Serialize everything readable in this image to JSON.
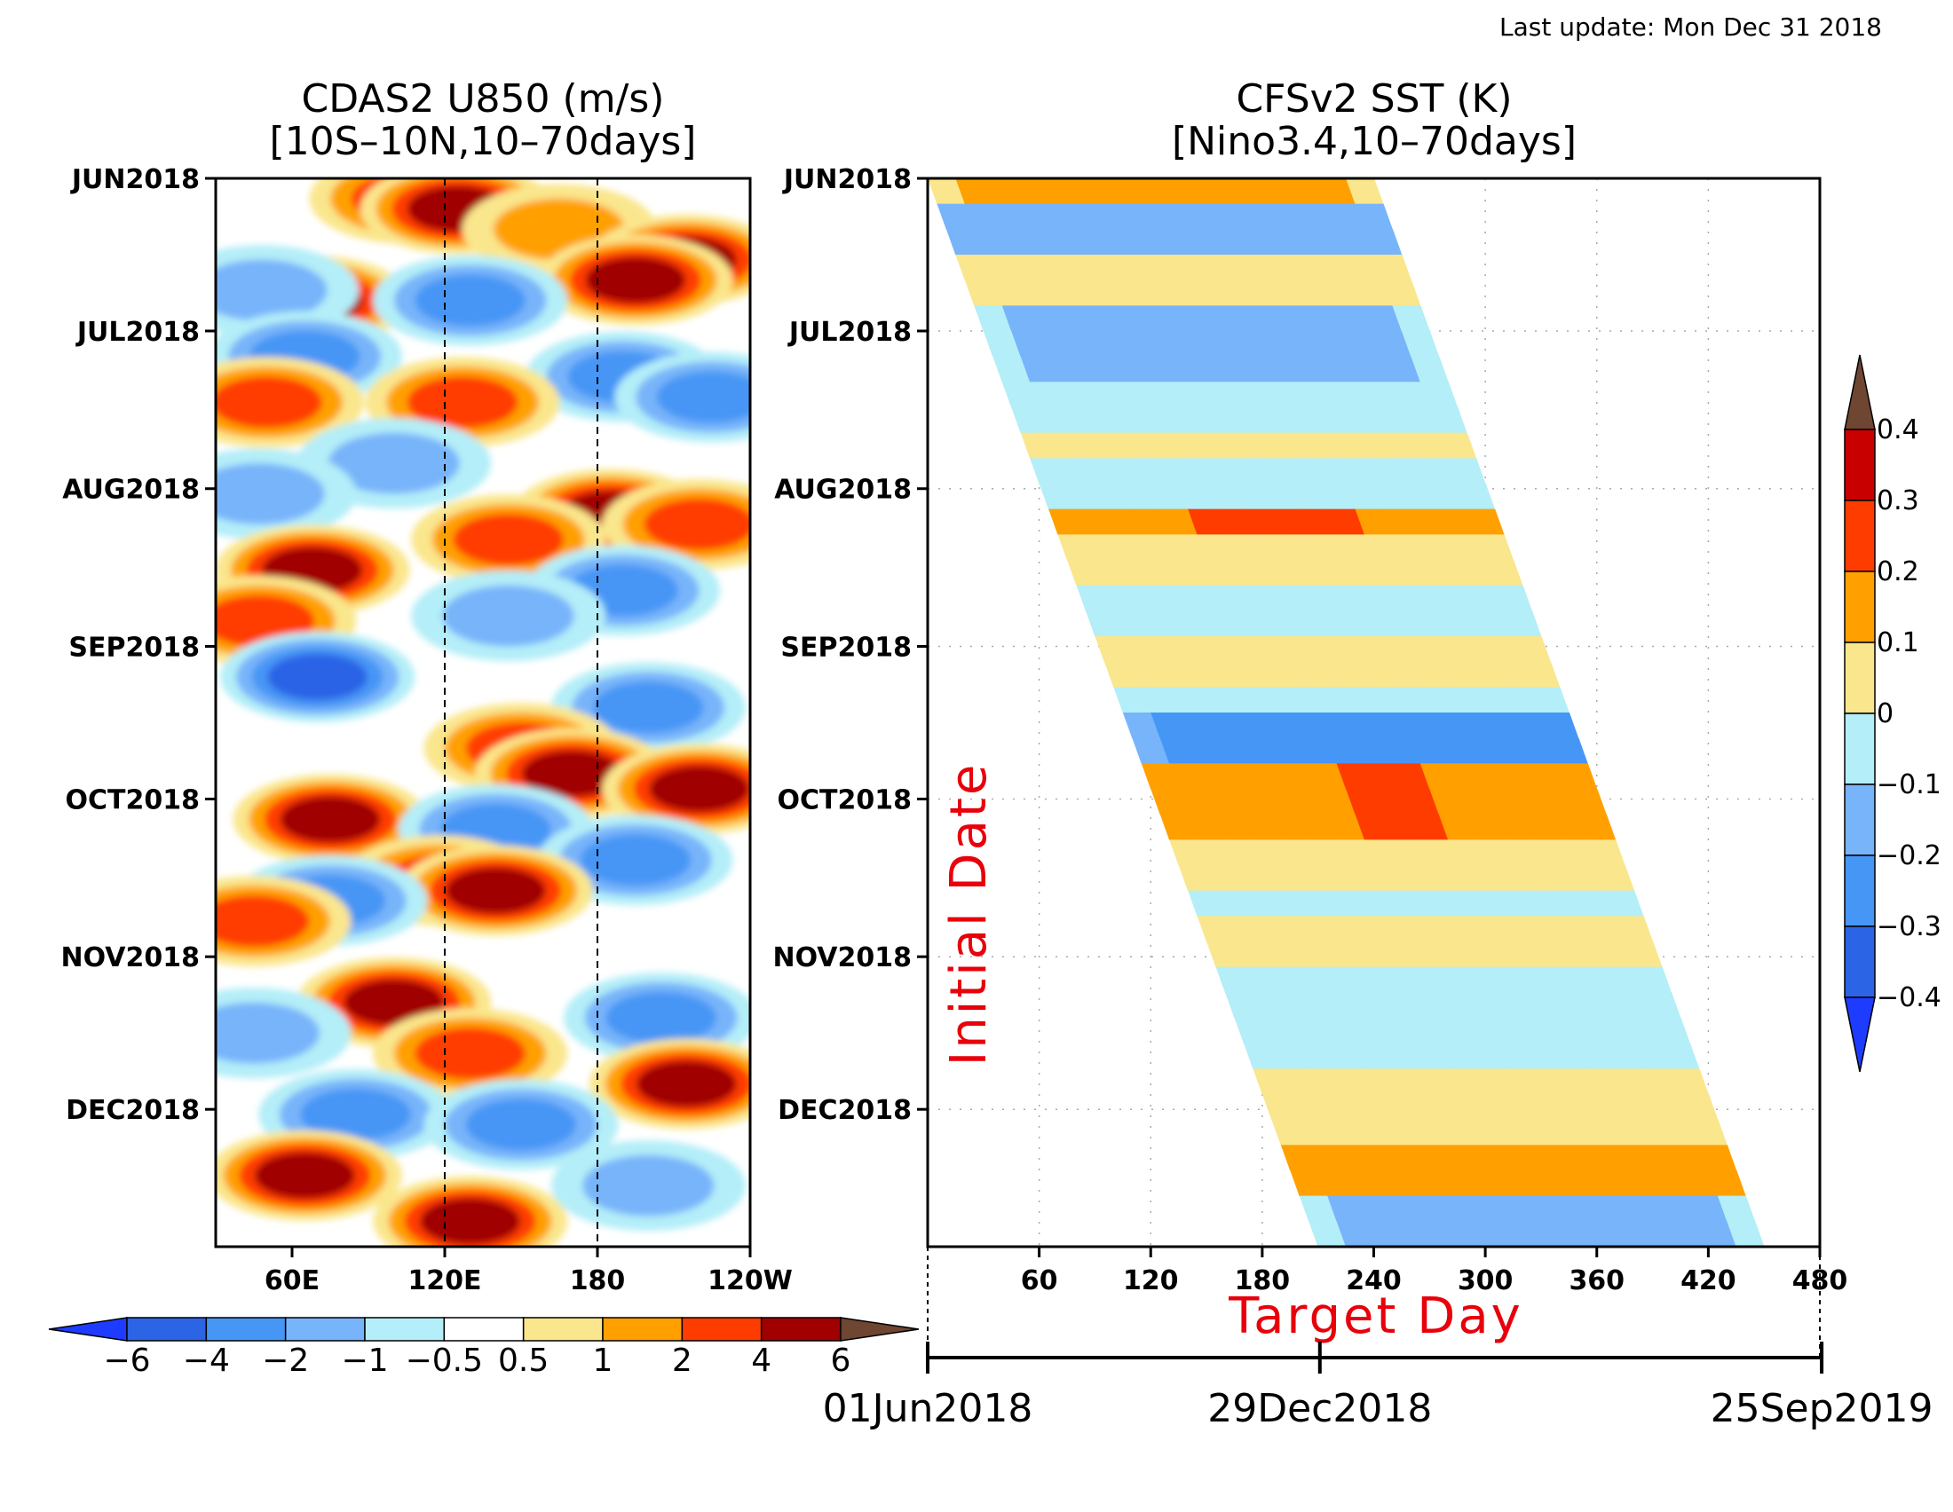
{
  "last_update": "Last update: Mon Dec 31 2018",
  "colors": {
    "u850": [
      "#1e3cff",
      "#2c64e6",
      "#4696f5",
      "#78b4fa",
      "#b4eef8",
      "#ffffff",
      "#fae68c",
      "#ffa000",
      "#ff3c00",
      "#a00000",
      "#6e4632"
    ],
    "sst": [
      "#1e3cff",
      "#2c64e6",
      "#4696f5",
      "#78b4fa",
      "#b4eef8",
      "#fae68c",
      "#ffa000",
      "#ff3c00",
      "#c80000",
      "#6e4632"
    ]
  },
  "chart_data": [
    {
      "type": "heatmap",
      "title_line1": "CDAS2 U850 (m/s)",
      "title_line2": "[10S–10N,10–70days]",
      "xlabel": "",
      "ylabel": "",
      "x_ticks": [
        "60E",
        "120E",
        "180",
        "120W"
      ],
      "x_tick_lon": [
        60,
        120,
        180,
        240
      ],
      "x_range_lon": [
        30,
        240
      ],
      "y_ticks": [
        "JUN2018",
        "JUL2018",
        "AUG2018",
        "SEP2018",
        "OCT2018",
        "NOV2018",
        "DEC2018"
      ],
      "y_tick_day": [
        0,
        30,
        61,
        92,
        122,
        153,
        183
      ],
      "y_range_day": [
        0,
        210
      ],
      "reference_lines_lon": [
        120,
        180
      ],
      "colorbar": {
        "orientation": "horizontal",
        "labels": [
          "−6",
          "−4",
          "−2",
          "−1",
          "−0.5",
          "0.5",
          "1",
          "2",
          "4",
          "6"
        ],
        "levels": [
          -6,
          -4,
          -2,
          -1,
          -0.5,
          0.5,
          1,
          2,
          4,
          6
        ]
      },
      "anomaly_blobs": [
        {
          "day": 4,
          "lon": 105,
          "v": 2
        },
        {
          "day": 6,
          "lon": 125,
          "v": 4
        },
        {
          "day": 10,
          "lon": 165,
          "v": 1
        },
        {
          "day": 16,
          "lon": 215,
          "v": 4
        },
        {
          "day": 20,
          "lon": 195,
          "v": 4
        },
        {
          "day": 24,
          "lon": 68,
          "v": 4
        },
        {
          "day": 24,
          "lon": 130,
          "v": -2
        },
        {
          "day": 22,
          "lon": 48,
          "v": -1
        },
        {
          "day": 35,
          "lon": 65,
          "v": -2
        },
        {
          "day": 39,
          "lon": 190,
          "v": -2
        },
        {
          "day": 43,
          "lon": 225,
          "v": -2
        },
        {
          "day": 44,
          "lon": 50,
          "v": 2
        },
        {
          "day": 44,
          "lon": 127,
          "v": 2
        },
        {
          "day": 56,
          "lon": 100,
          "v": -1
        },
        {
          "day": 62,
          "lon": 47,
          "v": -1
        },
        {
          "day": 66,
          "lon": 185,
          "v": 4
        },
        {
          "day": 68,
          "lon": 220,
          "v": 2
        },
        {
          "day": 71,
          "lon": 145,
          "v": 2
        },
        {
          "day": 77,
          "lon": 68,
          "v": 4
        },
        {
          "day": 81,
          "lon": 190,
          "v": -2
        },
        {
          "day": 86,
          "lon": 145,
          "v": -1
        },
        {
          "day": 87,
          "lon": 47,
          "v": 2
        },
        {
          "day": 98,
          "lon": 70,
          "v": -4
        },
        {
          "day": 104,
          "lon": 200,
          "v": -2
        },
        {
          "day": 112,
          "lon": 150,
          "v": 2
        },
        {
          "day": 117,
          "lon": 170,
          "v": 4
        },
        {
          "day": 120,
          "lon": 220,
          "v": 4
        },
        {
          "day": 126,
          "lon": 75,
          "v": 4
        },
        {
          "day": 128,
          "lon": 140,
          "v": -2
        },
        {
          "day": 134,
          "lon": 195,
          "v": -2
        },
        {
          "day": 138,
          "lon": 118,
          "v": 2
        },
        {
          "day": 140,
          "lon": 140,
          "v": 4
        },
        {
          "day": 142,
          "lon": 75,
          "v": -2
        },
        {
          "day": 146,
          "lon": 45,
          "v": 2
        },
        {
          "day": 162,
          "lon": 100,
          "v": 4
        },
        {
          "day": 165,
          "lon": 205,
          "v": -2
        },
        {
          "day": 168,
          "lon": 45,
          "v": -1
        },
        {
          "day": 172,
          "lon": 130,
          "v": 2
        },
        {
          "day": 178,
          "lon": 215,
          "v": 4
        },
        {
          "day": 184,
          "lon": 85,
          "v": -2
        },
        {
          "day": 186,
          "lon": 150,
          "v": -2
        },
        {
          "day": 196,
          "lon": 65,
          "v": 4
        },
        {
          "day": 198,
          "lon": 200,
          "v": -1
        },
        {
          "day": 205,
          "lon": 130,
          "v": 4
        }
      ]
    },
    {
      "type": "heatmap",
      "title_line1": "CFSv2 SST (K)",
      "title_line2": "[Nino3.4,10–70days]",
      "xlabel": "Target Day",
      "ylabel": "Initial Date",
      "x_ticks": [
        "60",
        "120",
        "180",
        "240",
        "300",
        "360",
        "420",
        "480"
      ],
      "x_range": [
        0,
        480
      ],
      "y_ticks": [
        "JUN2018",
        "JUL2018",
        "AUG2018",
        "SEP2018",
        "OCT2018",
        "NOV2018",
        "DEC2018"
      ],
      "y_tick_day": [
        0,
        30,
        61,
        92,
        122,
        153,
        183
      ],
      "y_range_day": [
        0,
        210
      ],
      "forecast_window_days": [
        0,
        240
      ],
      "date_axis": [
        "01Jun2018",
        "29Dec2018",
        "25Sep2019"
      ],
      "date_axis_day": [
        0,
        211,
        481
      ],
      "colorbar": {
        "orientation": "vertical",
        "labels": [
          "−0.4",
          "−0.3",
          "−0.2",
          "−0.1",
          "0",
          "0.1",
          "0.2",
          "0.3",
          "0.4"
        ],
        "levels": [
          -0.4,
          -0.3,
          -0.2,
          -0.1,
          0,
          0.1,
          0.2,
          0.3,
          0.4
        ]
      },
      "anomaly_bands": [
        {
          "day": 2,
          "v": 0.12
        },
        {
          "day": 12,
          "v": -0.15
        },
        {
          "day": 22,
          "v": 0.05
        },
        {
          "day": 32,
          "v": -0.12
        },
        {
          "day": 44,
          "v": -0.05
        },
        {
          "day": 52,
          "v": 0.06
        },
        {
          "day": 60,
          "v": -0.05
        },
        {
          "day": 68,
          "v": 0.18
        },
        {
          "day": 75,
          "v": 0.05
        },
        {
          "day": 84,
          "v": -0.05
        },
        {
          "day": 94,
          "v": 0.04
        },
        {
          "day": 101,
          "v": -0.04
        },
        {
          "day": 110,
          "v": -0.25
        },
        {
          "day": 124,
          "v": 0.17
        },
        {
          "day": 134,
          "v": 0.05
        },
        {
          "day": 142,
          "v": -0.05
        },
        {
          "day": 150,
          "v": 0.05
        },
        {
          "day": 160,
          "v": -0.08
        },
        {
          "day": 172,
          "v": -0.02
        },
        {
          "day": 182,
          "v": 0.06
        },
        {
          "day": 194,
          "v": 0.15
        },
        {
          "day": 207,
          "v": -0.12
        }
      ]
    }
  ]
}
